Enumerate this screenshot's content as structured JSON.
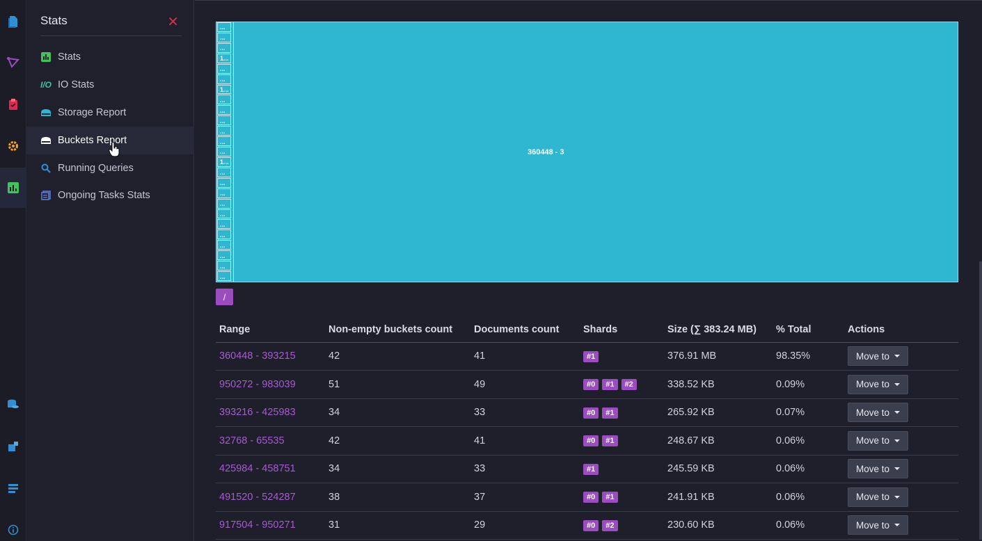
{
  "submenu": {
    "title": "Stats",
    "items": [
      {
        "label": "Stats",
        "icon": "stats-icon",
        "color": "#3fc35a"
      },
      {
        "label": "IO Stats",
        "icon": "io-stats-icon",
        "color": "#3fc3a0"
      },
      {
        "label": "Storage Report",
        "icon": "storage-icon",
        "color": "#2fb6d1"
      },
      {
        "label": "Buckets Report",
        "icon": "buckets-icon",
        "color": "#ffffff"
      },
      {
        "label": "Running Queries",
        "icon": "search-icon",
        "color": "#2f8fd1"
      },
      {
        "label": "Ongoing Tasks Stats",
        "icon": "tasks-icon",
        "color": "#5b7bd6"
      }
    ]
  },
  "treemap": {
    "center_label": "360448 - 3",
    "cell_labels": [
      "...",
      "...",
      "...",
      "1...",
      "...",
      "...",
      "1...",
      "...",
      "...",
      "...",
      "...",
      "...",
      "...",
      "1...",
      "...",
      "...",
      "...",
      "...",
      "...",
      "...",
      "...",
      "...",
      "...",
      "...",
      "..."
    ],
    "color": "#2fb6d1"
  },
  "breadcrumb": "/",
  "table": {
    "headers": {
      "range": "Range",
      "buckets": "Non-empty buckets count",
      "docs": "Documents count",
      "shards": "Shards",
      "size": "Size (∑ 383.24 MB)",
      "total": "% Total",
      "actions": "Actions"
    },
    "move_label": "Move to",
    "rows": [
      {
        "range": "360448 - 393215",
        "buckets": "42",
        "docs": "41",
        "shards": [
          "#1"
        ],
        "size": "376.91 MB",
        "total": "98.35%"
      },
      {
        "range": "950272 - 983039",
        "buckets": "51",
        "docs": "49",
        "shards": [
          "#0",
          "#1",
          "#2"
        ],
        "size": "338.52 KB",
        "total": "0.09%"
      },
      {
        "range": "393216 - 425983",
        "buckets": "34",
        "docs": "33",
        "shards": [
          "#0",
          "#1"
        ],
        "size": "265.92 KB",
        "total": "0.07%"
      },
      {
        "range": "32768 - 65535",
        "buckets": "42",
        "docs": "41",
        "shards": [
          "#0",
          "#1"
        ],
        "size": "248.67 KB",
        "total": "0.06%"
      },
      {
        "range": "425984 - 458751",
        "buckets": "34",
        "docs": "33",
        "shards": [
          "#1"
        ],
        "size": "245.59 KB",
        "total": "0.06%"
      },
      {
        "range": "491520 - 524287",
        "buckets": "38",
        "docs": "37",
        "shards": [
          "#0",
          "#1"
        ],
        "size": "241.91 KB",
        "total": "0.06%"
      },
      {
        "range": "917504 - 950271",
        "buckets": "31",
        "docs": "29",
        "shards": [
          "#0",
          "#2"
        ],
        "size": "230.60 KB",
        "total": "0.06%"
      }
    ]
  }
}
